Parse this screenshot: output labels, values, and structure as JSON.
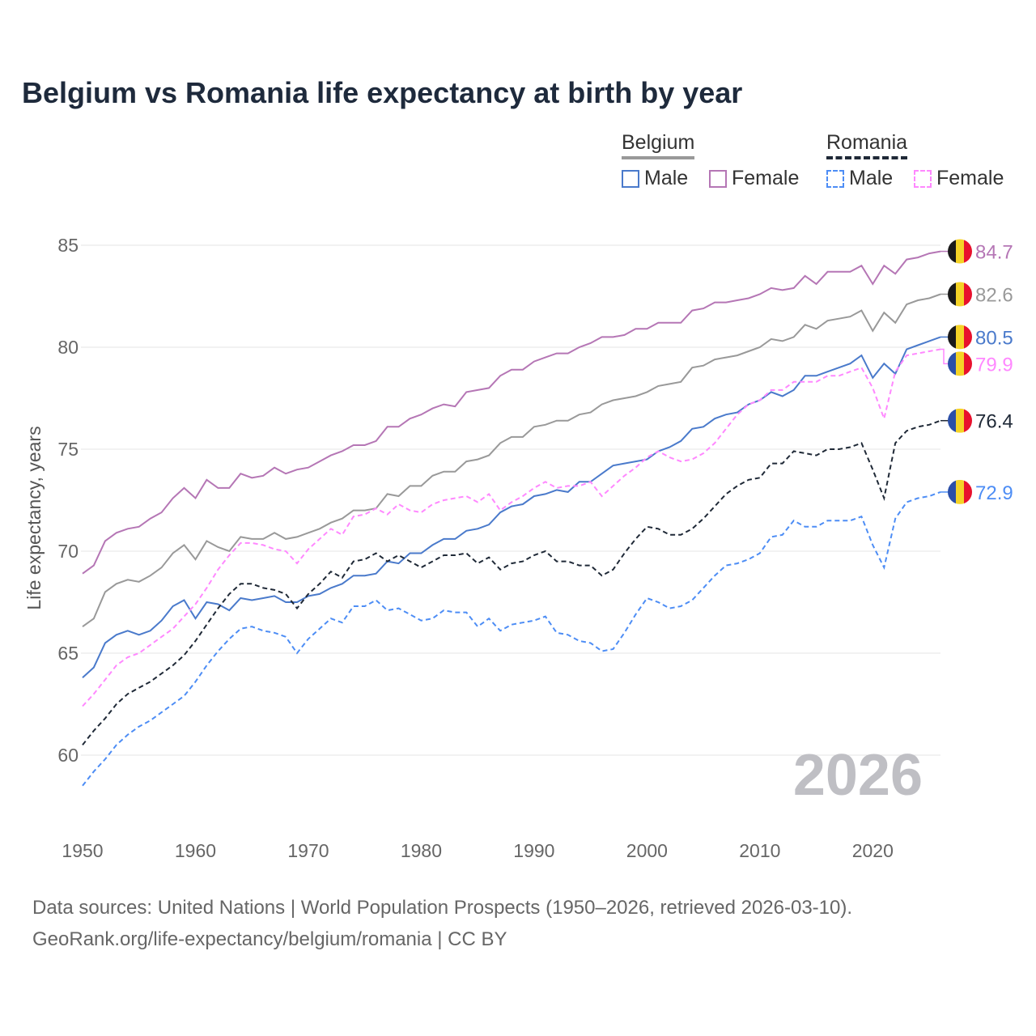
{
  "chart_data": {
    "type": "line",
    "title": "Belgium vs Romania life expectancy at birth by year",
    "xlabel": "",
    "ylabel": "Life expectancy, years",
    "xlim": [
      1950,
      2026
    ],
    "ylim": [
      58,
      86
    ],
    "x_ticks": [
      "1950",
      "1960",
      "1970",
      "1980",
      "1990",
      "2000",
      "2010",
      "2020"
    ],
    "y_ticks": [
      "60",
      "65",
      "70",
      "75",
      "80",
      "85"
    ],
    "grid": true,
    "watermark_year": "2026",
    "legend": {
      "groups": [
        {
          "name": "Belgium",
          "items": [
            "Male",
            "Female"
          ]
        },
        {
          "name": "Romania",
          "items": [
            "Male",
            "Female"
          ]
        }
      ],
      "placement": "top-right"
    },
    "start_year": 1950,
    "series": [
      {
        "name": "Belgium Female",
        "country": "Belgium",
        "color": "#b576b5",
        "dashed": false,
        "end_label": "84.7",
        "values": [
          68.9,
          69.3,
          70.5,
          70.9,
          71.1,
          71.2,
          71.6,
          71.9,
          72.6,
          73.1,
          72.6,
          73.5,
          73.1,
          73.1,
          73.8,
          73.6,
          73.7,
          74.1,
          73.8,
          74.0,
          74.1,
          74.4,
          74.7,
          74.9,
          75.2,
          75.2,
          75.4,
          76.1,
          76.1,
          76.5,
          76.7,
          77.0,
          77.2,
          77.1,
          77.8,
          77.9,
          78.0,
          78.6,
          78.9,
          78.9,
          79.3,
          79.5,
          79.7,
          79.7,
          80.0,
          80.2,
          80.5,
          80.5,
          80.6,
          80.9,
          80.9,
          81.2,
          81.2,
          81.2,
          81.8,
          81.9,
          82.2,
          82.2,
          82.3,
          82.4,
          82.6,
          82.9,
          82.8,
          82.9,
          83.5,
          83.1,
          83.7,
          83.7,
          83.7,
          84.0,
          83.1,
          84.0,
          83.6,
          84.3,
          84.4,
          84.6,
          84.7
        ]
      },
      {
        "name": "Belgium",
        "country": "Belgium",
        "color": "#999999",
        "dashed": false,
        "end_label": "82.6",
        "values": [
          66.3,
          66.7,
          68.0,
          68.4,
          68.6,
          68.5,
          68.8,
          69.2,
          69.9,
          70.3,
          69.6,
          70.5,
          70.2,
          70.0,
          70.7,
          70.6,
          70.6,
          70.9,
          70.6,
          70.7,
          70.9,
          71.1,
          71.4,
          71.6,
          72.0,
          72.0,
          72.1,
          72.8,
          72.7,
          73.2,
          73.2,
          73.7,
          73.9,
          73.9,
          74.4,
          74.5,
          74.7,
          75.3,
          75.6,
          75.6,
          76.1,
          76.2,
          76.4,
          76.4,
          76.7,
          76.8,
          77.2,
          77.4,
          77.5,
          77.6,
          77.8,
          78.1,
          78.2,
          78.3,
          79.0,
          79.1,
          79.4,
          79.5,
          79.6,
          79.8,
          80.0,
          80.4,
          80.3,
          80.5,
          81.1,
          80.9,
          81.3,
          81.4,
          81.5,
          81.8,
          80.8,
          81.7,
          81.2,
          82.1,
          82.3,
          82.4,
          82.6
        ]
      },
      {
        "name": "Belgium Male",
        "country": "Belgium",
        "color": "#4a7acb",
        "dashed": false,
        "end_label": "80.5",
        "values": [
          63.8,
          64.3,
          65.5,
          65.9,
          66.1,
          65.9,
          66.1,
          66.6,
          67.3,
          67.6,
          66.7,
          67.5,
          67.4,
          67.1,
          67.7,
          67.6,
          67.7,
          67.8,
          67.5,
          67.5,
          67.8,
          67.9,
          68.2,
          68.4,
          68.8,
          68.8,
          68.9,
          69.5,
          69.4,
          69.9,
          69.9,
          70.3,
          70.6,
          70.6,
          71.0,
          71.1,
          71.3,
          71.9,
          72.2,
          72.3,
          72.7,
          72.8,
          73.0,
          72.9,
          73.4,
          73.4,
          73.8,
          74.2,
          74.3,
          74.4,
          74.5,
          74.9,
          75.1,
          75.4,
          76.0,
          76.1,
          76.5,
          76.7,
          76.8,
          77.2,
          77.4,
          77.8,
          77.6,
          77.9,
          78.6,
          78.6,
          78.8,
          79.0,
          79.2,
          79.6,
          78.5,
          79.2,
          78.7,
          79.9,
          80.1,
          80.3,
          80.5
        ]
      },
      {
        "name": "Romania Female",
        "country": "Romania",
        "color": "#ff88ff",
        "dashed": true,
        "end_label": "79.9",
        "values": [
          62.4,
          63.0,
          63.7,
          64.4,
          64.8,
          65.0,
          65.4,
          65.8,
          66.2,
          66.8,
          67.4,
          68.2,
          69.1,
          69.8,
          70.4,
          70.4,
          70.3,
          70.1,
          70.0,
          69.4,
          70.1,
          70.6,
          71.1,
          70.8,
          71.7,
          71.8,
          72.1,
          71.8,
          72.3,
          72.0,
          71.9,
          72.3,
          72.5,
          72.6,
          72.7,
          72.4,
          72.8,
          72.0,
          72.4,
          72.7,
          73.1,
          73.4,
          73.1,
          73.2,
          73.2,
          73.4,
          72.7,
          73.2,
          73.7,
          74.1,
          74.6,
          74.9,
          74.6,
          74.4,
          74.5,
          74.8,
          75.3,
          76.0,
          76.7,
          77.2,
          77.4,
          77.9,
          77.9,
          78.3,
          78.3,
          78.3,
          78.6,
          78.6,
          78.8,
          79.0,
          78.0,
          76.5,
          78.8,
          79.6,
          79.7,
          79.8,
          79.9
        ]
      },
      {
        "name": "Romania",
        "country": "Romania",
        "color": "#1f2937",
        "dashed": true,
        "end_label": "76.4",
        "values": [
          60.5,
          61.2,
          61.8,
          62.5,
          63.0,
          63.3,
          63.6,
          64.0,
          64.4,
          64.9,
          65.6,
          66.4,
          67.2,
          67.9,
          68.4,
          68.4,
          68.2,
          68.1,
          67.9,
          67.2,
          67.9,
          68.4,
          69.0,
          68.7,
          69.5,
          69.6,
          69.9,
          69.5,
          69.8,
          69.5,
          69.2,
          69.5,
          69.8,
          69.8,
          69.9,
          69.4,
          69.7,
          69.1,
          69.4,
          69.5,
          69.8,
          70.0,
          69.5,
          69.5,
          69.3,
          69.3,
          68.8,
          69.1,
          69.9,
          70.6,
          71.2,
          71.1,
          70.8,
          70.8,
          71.1,
          71.6,
          72.2,
          72.8,
          73.2,
          73.5,
          73.6,
          74.3,
          74.3,
          74.9,
          74.8,
          74.7,
          75.0,
          75.0,
          75.1,
          75.3,
          74.0,
          72.6,
          75.3,
          75.9,
          76.1,
          76.2,
          76.4
        ]
      },
      {
        "name": "Romania Male",
        "country": "Romania",
        "color": "#4d8df5",
        "dashed": true,
        "end_label": "72.9",
        "values": [
          58.5,
          59.2,
          59.8,
          60.5,
          61.0,
          61.4,
          61.7,
          62.1,
          62.5,
          62.9,
          63.6,
          64.4,
          65.1,
          65.7,
          66.2,
          66.3,
          66.1,
          66.0,
          65.8,
          65.0,
          65.7,
          66.2,
          66.7,
          66.5,
          67.3,
          67.3,
          67.6,
          67.1,
          67.2,
          66.9,
          66.6,
          66.7,
          67.1,
          67.0,
          67.0,
          66.3,
          66.7,
          66.1,
          66.4,
          66.5,
          66.6,
          66.8,
          66.0,
          65.9,
          65.6,
          65.5,
          65.1,
          65.2,
          66.0,
          66.9,
          67.7,
          67.5,
          67.2,
          67.3,
          67.6,
          68.2,
          68.8,
          69.3,
          69.4,
          69.6,
          69.9,
          70.7,
          70.8,
          71.5,
          71.2,
          71.2,
          71.5,
          71.5,
          71.5,
          71.7,
          70.3,
          69.2,
          71.6,
          72.4,
          72.6,
          72.7,
          72.9
        ]
      }
    ]
  },
  "footer": {
    "line1": "Data sources: United Nations | World Population Prospects (1950–2026, retrieved 2026-03-10).",
    "line2": "GeoRank.org/life-expectancy/belgium/romania | CC BY"
  }
}
